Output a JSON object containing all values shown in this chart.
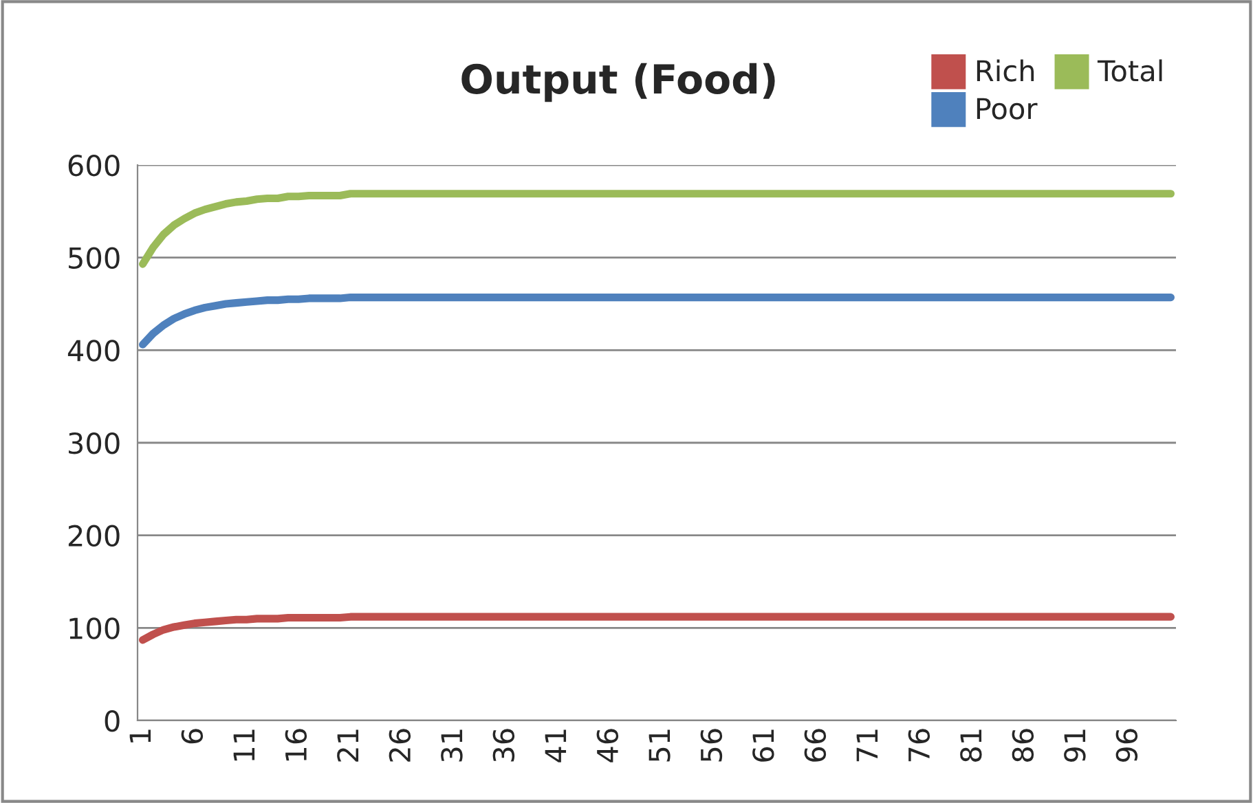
{
  "chart_data": {
    "type": "line",
    "title": "Output (Food)",
    "categories": [
      "1",
      null,
      null,
      null,
      null,
      "6",
      null,
      null,
      null,
      null,
      "11",
      null,
      null,
      null,
      null,
      "16",
      null,
      null,
      null,
      null,
      "21",
      null,
      null,
      null,
      null,
      "26",
      null,
      null,
      null,
      null,
      "31",
      null,
      null,
      null,
      null,
      "36",
      null,
      null,
      null,
      null,
      "41",
      null,
      null,
      null,
      null,
      "46",
      null,
      null,
      null,
      null,
      "51",
      null,
      null,
      null,
      null,
      "56",
      null,
      null,
      null,
      null,
      "61",
      null,
      null,
      null,
      null,
      "66",
      null,
      null,
      null,
      null,
      "71",
      null,
      null,
      null,
      null,
      "76",
      null,
      null,
      null,
      null,
      "81",
      null,
      null,
      null,
      null,
      "86",
      null,
      null,
      null,
      null,
      "91",
      null,
      null,
      null,
      null,
      "96",
      null,
      null,
      null,
      null
    ],
    "series": [
      {
        "name": "Rich",
        "color": "#c0504d",
        "values": [
          87,
          93,
          98,
          101,
          103,
          105,
          106,
          107,
          108,
          109,
          109,
          110,
          110,
          110,
          111,
          111,
          111,
          111,
          111,
          111,
          112,
          112,
          112,
          112,
          112,
          112,
          112,
          112,
          112,
          112,
          112,
          112,
          112,
          112,
          112,
          112,
          112,
          112,
          112,
          112,
          112,
          112,
          112,
          112,
          112,
          112,
          112,
          112,
          112,
          112,
          112,
          112,
          112,
          112,
          112,
          112,
          112,
          112,
          112,
          112,
          112,
          112,
          112,
          112,
          112,
          112,
          112,
          112,
          112,
          112,
          112,
          112,
          112,
          112,
          112,
          112,
          112,
          112,
          112,
          112,
          112,
          112,
          112,
          112,
          112,
          112,
          112,
          112,
          112,
          112,
          112,
          112,
          112,
          112,
          112,
          112,
          112,
          112,
          112,
          112
        ]
      },
      {
        "name": "Poor",
        "color": "#4f81bd",
        "values": [
          406,
          418,
          427,
          434,
          439,
          443,
          446,
          448,
          450,
          451,
          452,
          453,
          454,
          454,
          455,
          455,
          456,
          456,
          456,
          456,
          457,
          457,
          457,
          457,
          457,
          457,
          457,
          457,
          457,
          457,
          457,
          457,
          457,
          457,
          457,
          457,
          457,
          457,
          457,
          457,
          457,
          457,
          457,
          457,
          457,
          457,
          457,
          457,
          457,
          457,
          457,
          457,
          457,
          457,
          457,
          457,
          457,
          457,
          457,
          457,
          457,
          457,
          457,
          457,
          457,
          457,
          457,
          457,
          457,
          457,
          457,
          457,
          457,
          457,
          457,
          457,
          457,
          457,
          457,
          457,
          457,
          457,
          457,
          457,
          457,
          457,
          457,
          457,
          457,
          457,
          457,
          457,
          457,
          457,
          457,
          457,
          457,
          457,
          457,
          457
        ]
      },
      {
        "name": "Total",
        "color": "#9bbb59",
        "values": [
          493,
          511,
          525,
          535,
          542,
          548,
          552,
          555,
          558,
          560,
          561,
          563,
          564,
          564,
          566,
          566,
          567,
          567,
          567,
          567,
          569,
          569,
          569,
          569,
          569,
          569,
          569,
          569,
          569,
          569,
          569,
          569,
          569,
          569,
          569,
          569,
          569,
          569,
          569,
          569,
          569,
          569,
          569,
          569,
          569,
          569,
          569,
          569,
          569,
          569,
          569,
          569,
          569,
          569,
          569,
          569,
          569,
          569,
          569,
          569,
          569,
          569,
          569,
          569,
          569,
          569,
          569,
          569,
          569,
          569,
          569,
          569,
          569,
          569,
          569,
          569,
          569,
          569,
          569,
          569,
          569,
          569,
          569,
          569,
          569,
          569,
          569,
          569,
          569,
          569,
          569,
          569,
          569,
          569,
          569,
          569,
          569,
          569,
          569,
          569
        ]
      }
    ],
    "ylim": [
      0,
      600
    ],
    "yticks": [
      0,
      100,
      200,
      300,
      400,
      500,
      600
    ],
    "grid": "y",
    "legend": "top right",
    "marker": "none",
    "line_style": "solid"
  }
}
